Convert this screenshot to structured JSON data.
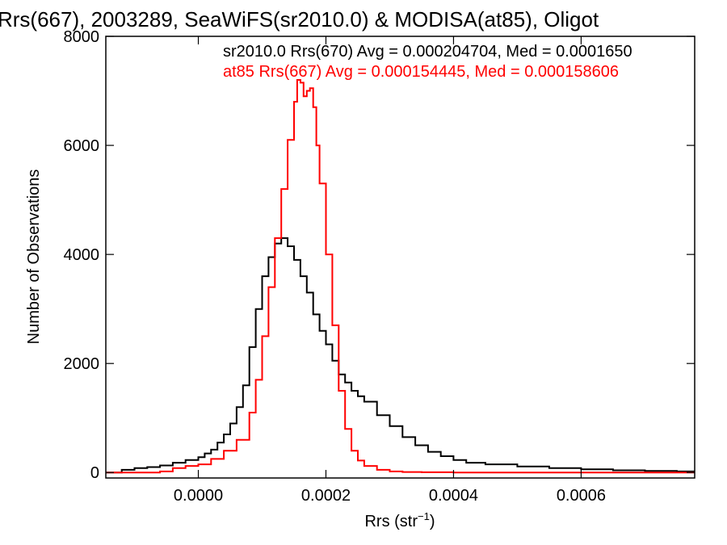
{
  "chart_data": {
    "type": "line",
    "title": "Rrs(667), 2003289, SeaWiFS(sr2010.0) & MODISA(at85), Oligot",
    "xlabel": "Rrs (str",
    "xlabel_sup": "−1",
    "xlabel_tail": ")",
    "ylabel": "Number of Observations",
    "xlim": [
      -0.000145,
      0.000778
    ],
    "ylim": [
      -100,
      8000
    ],
    "x_ticks": [
      0.0,
      0.0002,
      0.0004,
      0.0006
    ],
    "x_tick_labels": [
      "0.0000",
      "0.0002",
      "0.0004",
      "0.0006"
    ],
    "y_ticks": [
      0,
      2000,
      4000,
      6000,
      8000
    ],
    "y_tick_labels": [
      "0",
      "2000",
      "4000",
      "6000",
      "8000"
    ],
    "grid": false,
    "legend": "top-right",
    "annotations": [
      {
        "text": "sr2010.0 Rrs(670) Avg = 0.000204704, Med = 0.0001650",
        "color": "#000000"
      },
      {
        "text": "at85 Rrs(667) Avg = 0.000154445, Med = 0.000158606",
        "color": "#ff0000"
      }
    ],
    "series": [
      {
        "color": "#000000",
        "x": [
          -0.000145,
          -0.00012,
          -0.0001,
          -8e-05,
          -6e-05,
          -4e-05,
          -2e-05,
          0.0,
          1e-05,
          2e-05,
          3e-05,
          4e-05,
          5e-05,
          6e-05,
          7e-05,
          8e-05,
          9e-05,
          0.0001,
          0.00011,
          0.00012,
          0.00013,
          0.00014,
          0.00015,
          0.00016,
          0.00017,
          0.00018,
          0.00019,
          0.0002,
          0.00021,
          0.00022,
          0.00023,
          0.00024,
          0.00025,
          0.00026,
          0.00028,
          0.0003,
          0.00032,
          0.00034,
          0.00036,
          0.00038,
          0.0004,
          0.00042,
          0.00045,
          0.0005,
          0.00055,
          0.0006,
          0.00065,
          0.0007,
          0.00075,
          0.000778
        ],
        "y": [
          0,
          50,
          80,
          100,
          130,
          180,
          230,
          280,
          350,
          420,
          550,
          700,
          900,
          1200,
          1600,
          2300,
          3000,
          3600,
          3950,
          4200,
          4300,
          4150,
          3900,
          3600,
          3300,
          2900,
          2600,
          2350,
          2050,
          1800,
          1650,
          1500,
          1400,
          1300,
          1050,
          850,
          650,
          500,
          380,
          300,
          230,
          180,
          150,
          110,
          80,
          60,
          40,
          30,
          20,
          15
        ]
      },
      {
        "color": "#ff0000",
        "x": [
          -0.000145,
          -8e-05,
          -6e-05,
          -4e-05,
          -2e-05,
          0.0,
          2e-05,
          4e-05,
          6e-05,
          8e-05,
          9e-05,
          0.0001,
          0.00011,
          0.00012,
          0.00013,
          0.00014,
          0.00015,
          0.000155,
          0.00016,
          0.000165,
          0.00017,
          0.000175,
          0.00018,
          0.000185,
          0.00019,
          0.0002,
          0.00021,
          0.00022,
          0.00023,
          0.00024,
          0.00025,
          0.00026,
          0.00028,
          0.0003,
          0.00032,
          0.00035,
          0.0004,
          0.0005,
          0.000778
        ],
        "y": [
          0,
          0,
          20,
          80,
          120,
          150,
          250,
          400,
          600,
          1100,
          1700,
          2500,
          3400,
          4300,
          5200,
          6100,
          6800,
          7200,
          7150,
          6900,
          7000,
          7050,
          6700,
          6000,
          5300,
          4000,
          2700,
          1500,
          800,
          400,
          220,
          120,
          50,
          20,
          10,
          5,
          0,
          0,
          0
        ]
      }
    ]
  }
}
